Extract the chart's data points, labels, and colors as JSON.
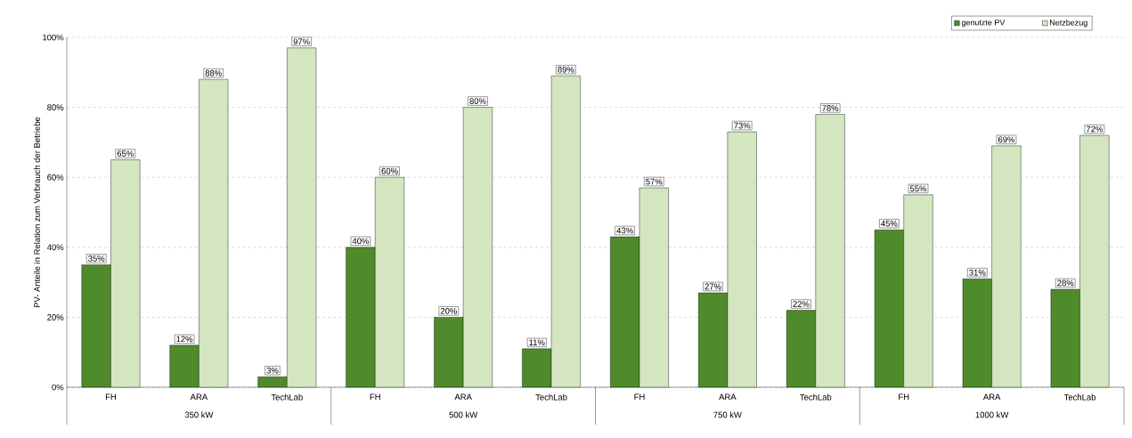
{
  "chart_data": {
    "type": "bar",
    "ylabel": "PV- Anteile in Relation zum Verbrauch der Betriebe",
    "categories": [
      "FH",
      "ARA",
      "TechLab",
      "FH",
      "ARA",
      "TechLab",
      "FH",
      "ARA",
      "TechLab",
      "FH",
      "ARA",
      "TechLab"
    ],
    "annotations": [
      "350 kW",
      "500 kW",
      "750 kW",
      "1000 kW"
    ],
    "series": [
      {
        "name": "genutzte PV",
        "color": "#4f8a2b",
        "values": [
          35,
          12,
          3,
          40,
          20,
          11,
          43,
          27,
          22,
          45,
          31,
          28
        ],
        "value_labels": [
          "35%",
          "12%",
          "3%",
          "40%",
          "20%",
          "11%",
          "43%",
          "27%",
          "22%",
          "45%",
          "31%",
          "28%"
        ]
      },
      {
        "name": "Netzbezug",
        "color": "#d3e6c0",
        "values": [
          65,
          88,
          97,
          60,
          80,
          89,
          57,
          73,
          78,
          55,
          69,
          72
        ],
        "value_labels": [
          "65%",
          "88%",
          "97%",
          "60%",
          "80%",
          "89%",
          "57%",
          "73%",
          "78%",
          "55%",
          "69%",
          "72%"
        ]
      }
    ],
    "ylim": [
      0,
      100
    ],
    "yticks": [
      {
        "value": 0,
        "label": "0%"
      },
      {
        "value": 20,
        "label": "20%"
      },
      {
        "value": 40,
        "label": "40%"
      },
      {
        "value": 60,
        "label": "60%"
      },
      {
        "value": 80,
        "label": "80%"
      },
      {
        "value": 100,
        "label": "100%"
      }
    ],
    "grid": "y",
    "legend": "top right"
  }
}
